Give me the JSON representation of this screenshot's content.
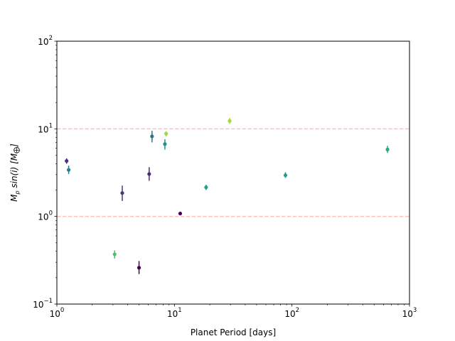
{
  "chart_data": {
    "type": "scatter",
    "title": "",
    "xlabel": "Planet Period [days]",
    "ylabel_parts": [
      "M",
      "p",
      " sin(i) [M",
      "⨁",
      "]"
    ],
    "xscale": "log",
    "yscale": "log",
    "xlim": [
      1,
      1000
    ],
    "ylim": [
      0.1,
      100
    ],
    "x_ticks": [
      {
        "value": 1,
        "base": "10",
        "exp": "0"
      },
      {
        "value": 10,
        "base": "10",
        "exp": "1"
      },
      {
        "value": 100,
        "base": "10",
        "exp": "2"
      },
      {
        "value": 1000,
        "base": "10",
        "exp": "3"
      }
    ],
    "y_ticks": [
      {
        "value": 0.1,
        "base": "10",
        "exp": "−1"
      },
      {
        "value": 1,
        "base": "10",
        "exp": "0"
      },
      {
        "value": 10,
        "base": "10",
        "exp": "1"
      },
      {
        "value": 100,
        "base": "10",
        "exp": "2"
      }
    ],
    "grid": false,
    "reference_lines": [
      {
        "y": 1,
        "color": "#ffc0c0",
        "style": "dashed"
      },
      {
        "y": 10,
        "color": "#ffc0c0",
        "style": "dashed"
      }
    ],
    "points": [
      {
        "x": 1.21,
        "y": 4.3,
        "err": [
          0.3,
          0.3
        ],
        "color": "#46327e"
      },
      {
        "x": 1.26,
        "y": 3.4,
        "err": [
          0.35,
          0.4
        ],
        "color": "#277f8e"
      },
      {
        "x": 3.1,
        "y": 0.37,
        "err": [
          0.04,
          0.04
        ],
        "color": "#4ac16d"
      },
      {
        "x": 3.6,
        "y": 1.85,
        "err": [
          0.35,
          0.4
        ],
        "color": "#443983"
      },
      {
        "x": 5.0,
        "y": 0.26,
        "err": [
          0.04,
          0.05
        ],
        "color": "#440154"
      },
      {
        "x": 6.1,
        "y": 3.05,
        "err": [
          0.5,
          0.6
        ],
        "color": "#472d7b"
      },
      {
        "x": 6.45,
        "y": 8.2,
        "err": [
          1.2,
          1.3
        ],
        "color": "#2c728e"
      },
      {
        "x": 8.3,
        "y": 6.7,
        "err": [
          0.9,
          0.9
        ],
        "color": "#21918c"
      },
      {
        "x": 8.5,
        "y": 8.8,
        "err": [
          0.6,
          0.6
        ],
        "color": "#a0da39"
      },
      {
        "x": 11.2,
        "y": 1.08,
        "err": [
          0.05,
          0.05
        ],
        "color": "#440154"
      },
      {
        "x": 18.6,
        "y": 2.15,
        "err": [
          0.15,
          0.15
        ],
        "color": "#1fa187"
      },
      {
        "x": 29.5,
        "y": 12.3,
        "err": [
          0.9,
          1.0
        ],
        "color": "#a5db36"
      },
      {
        "x": 88.0,
        "y": 2.95,
        "err": [
          0.2,
          0.25
        ],
        "color": "#1f9e89"
      },
      {
        "x": 650,
        "y": 5.8,
        "err": [
          0.5,
          0.6
        ],
        "color": "#26ad81"
      }
    ]
  }
}
